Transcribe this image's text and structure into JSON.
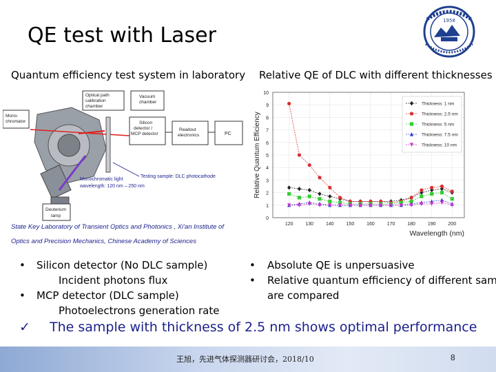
{
  "slide": {
    "title": "QE test with Laser",
    "left_heading": "Quantum efficiency test system in laboratory",
    "right_heading": "Relative QE of DLC with different thicknesses",
    "caption_line1": "State Key Laboratory of Transient Optics and Photonics , Xi'an Institute of",
    "caption_line2": "Optics and Precision Mechanics, Chinese Academy of Sciences",
    "left_bullets": [
      {
        "bullet": "•",
        "text": "Silicon detector (No DLC sample)",
        "sub": "Incident photons flux"
      },
      {
        "bullet": "•",
        "text": "MCP detector (DLC sample)",
        "sub": "Photoelectrons generation rate"
      }
    ],
    "right_bullets": [
      {
        "bullet": "•",
        "text": "Absolute QE is unpersuasive"
      },
      {
        "bullet": "•",
        "text": "Relative quantum efficiency of different samp",
        "cont": "are compared"
      }
    ],
    "conclusion_mark": "✓",
    "conclusion": "The sample with thickness of 2.5 nm shows optimal performance",
    "footer_text": "王旭，先进气体探测器研讨会，2018/10",
    "page_number": "8"
  },
  "diagram": {
    "labels": {
      "monochromator": "Mono-\nchromator",
      "optical_path": "Optical path\ncalibration\nchamber",
      "vacuum": "Vacuum\nchamber",
      "silicon": "Silicon\ndetector /\nMCP detector",
      "readout": "Readout\nelectronics",
      "pc": "PC",
      "testing": "Testing sample: DLC photocathode",
      "mono_light": "Monochromatic light\nwavelength: 120 nm – 250 nm",
      "deuterium": "Deuterium\nlamp"
    }
  },
  "colors": {
    "accent_text": "#1a1f8a",
    "s1": "#222222",
    "s2": "#d93030",
    "s3": "#33cc33",
    "s4": "#2a3bcc",
    "s5": "#cc33cc"
  },
  "chart_data": {
    "type": "line",
    "title": "",
    "xlabel": "Wavelength (nm)",
    "ylabel": "Relative Quantum Efficiency",
    "xlim": [
      112,
      206
    ],
    "ylim": [
      0,
      10
    ],
    "xticks": [
      120,
      130,
      140,
      150,
      160,
      170,
      180,
      190,
      200
    ],
    "yticks": [
      0,
      1,
      2,
      3,
      4,
      5,
      6,
      7,
      8,
      9,
      10
    ],
    "legend_position": "top-right",
    "x": [
      120,
      125,
      130,
      135,
      140,
      145,
      150,
      155,
      160,
      165,
      170,
      175,
      180,
      185,
      190,
      195,
      200
    ],
    "series": [
      {
        "name": "Thickness: 1 nm",
        "color": "#222222",
        "marker": "diamond",
        "values": [
          2.4,
          2.3,
          2.2,
          1.9,
          1.7,
          1.5,
          1.3,
          1.3,
          1.3,
          1.3,
          1.3,
          1.4,
          1.6,
          2.0,
          2.2,
          2.3,
          2.0
        ]
      },
      {
        "name": "Thickness: 2.5 nm",
        "color": "#d93030",
        "marker": "circle",
        "values": [
          9.1,
          5.0,
          4.2,
          3.2,
          2.4,
          1.6,
          1.3,
          1.3,
          1.3,
          1.3,
          1.2,
          1.3,
          1.6,
          2.2,
          2.4,
          2.5,
          2.1
        ]
      },
      {
        "name": "Thickness: 5 nm",
        "color": "#33cc33",
        "marker": "square",
        "values": [
          1.9,
          1.6,
          1.7,
          1.5,
          1.3,
          1.2,
          1.1,
          1.1,
          1.1,
          1.1,
          1.1,
          1.2,
          1.3,
          1.7,
          1.9,
          2.0,
          1.5
        ]
      },
      {
        "name": "Thickness: 7.5 nm",
        "color": "#2a3bcc",
        "marker": "triangle",
        "values": [
          1.0,
          1.1,
          1.2,
          1.1,
          1.0,
          1.0,
          1.0,
          1.0,
          1.0,
          1.0,
          1.0,
          1.0,
          1.1,
          1.2,
          1.3,
          1.4,
          1.1
        ]
      },
      {
        "name": "Thickness: 10 nm",
        "color": "#cc33cc",
        "marker": "triangle-down",
        "values": [
          1.0,
          1.0,
          1.1,
          1.0,
          1.0,
          1.0,
          1.0,
          1.0,
          1.0,
          1.0,
          1.0,
          1.0,
          1.0,
          1.1,
          1.1,
          1.2,
          1.0
        ]
      }
    ]
  }
}
